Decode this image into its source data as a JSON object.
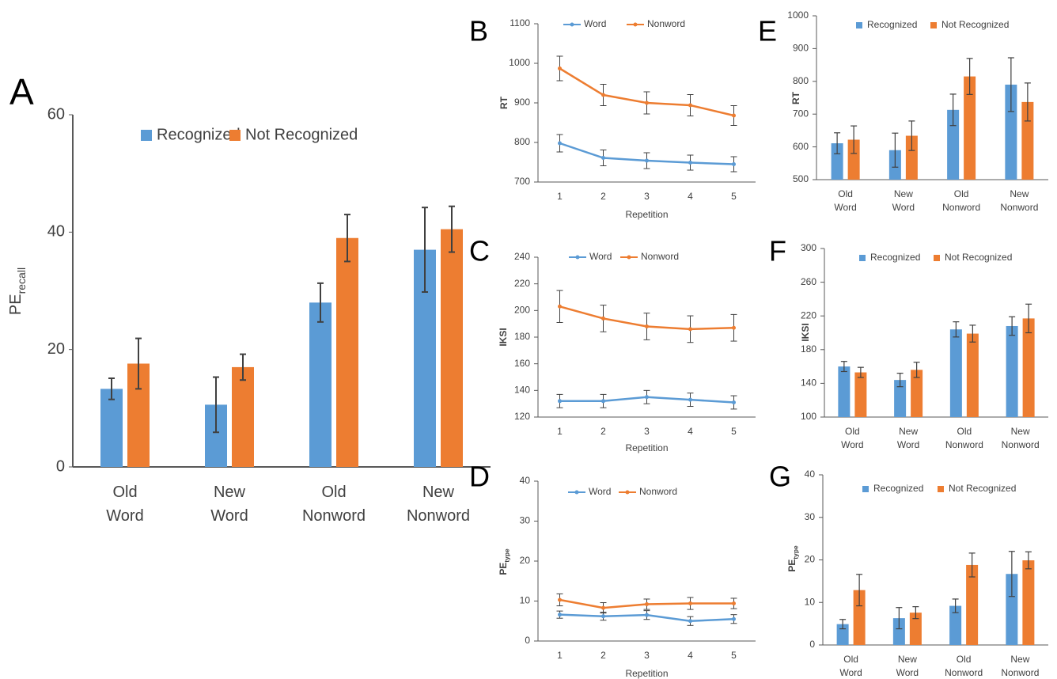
{
  "colors": {
    "blue": "#5b9bd5",
    "orange": "#ed7d31",
    "axis": "#595959",
    "err": "#404040",
    "text": "#404040"
  },
  "chart_data": [
    {
      "panel": "A",
      "type": "bar",
      "categories": [
        "Old Word",
        "New Word",
        "Old Nonword",
        "New Nonword"
      ],
      "category_lines": [
        [
          "Old",
          "Word"
        ],
        [
          "New",
          "Word"
        ],
        [
          "Old",
          "Nonword"
        ],
        [
          "New",
          "Nonword"
        ]
      ],
      "ylabel": "PE",
      "ylabel_sub": "recall",
      "ylim": [
        0,
        60
      ],
      "yticks": [
        0,
        20,
        40,
        60
      ],
      "grid": false,
      "legend": "top",
      "series": [
        {
          "name": "Recognized",
          "color": "blue",
          "values": [
            13.3,
            10.6,
            28.0,
            37.0
          ],
          "errors": [
            1.8,
            4.7,
            3.3,
            7.2
          ]
        },
        {
          "name": "Not Recognized",
          "color": "orange",
          "values": [
            17.6,
            17.0,
            39.0,
            40.5
          ],
          "errors": [
            4.3,
            2.2,
            4.0,
            3.9
          ]
        }
      ]
    },
    {
      "panel": "B",
      "type": "line",
      "x": [
        1,
        2,
        3,
        4,
        5
      ],
      "xlabel": "Repetition",
      "ylabel": "RT",
      "ylim": [
        700,
        1100
      ],
      "yticks": [
        700,
        800,
        900,
        1000,
        1100
      ],
      "grid": false,
      "legend": "top",
      "series": [
        {
          "name": "Word",
          "color": "blue",
          "values": [
            798,
            761,
            754,
            749,
            745
          ],
          "errors": [
            22,
            20,
            20,
            19,
            19
          ]
        },
        {
          "name": "Nonword",
          "color": "orange",
          "values": [
            987,
            920,
            900,
            894,
            868
          ],
          "errors": [
            31,
            27,
            28,
            27,
            25
          ]
        }
      ]
    },
    {
      "panel": "C",
      "type": "line",
      "x": [
        1,
        2,
        3,
        4,
        5
      ],
      "xlabel": "Repetition",
      "ylabel": "IKSI",
      "ylim": [
        120,
        240
      ],
      "yticks": [
        120,
        140,
        160,
        180,
        200,
        220,
        240
      ],
      "grid": false,
      "legend": "top",
      "series": [
        {
          "name": "Word",
          "color": "blue",
          "values": [
            132,
            132,
            135,
            133,
            131
          ],
          "errors": [
            5,
            5,
            5,
            5,
            5
          ]
        },
        {
          "name": "Nonword",
          "color": "orange",
          "values": [
            203,
            194,
            188,
            186,
            187
          ],
          "errors": [
            12,
            10,
            10,
            10,
            10
          ]
        }
      ]
    },
    {
      "panel": "D",
      "type": "line",
      "x": [
        1,
        2,
        3,
        4,
        5
      ],
      "xlabel": "Repetition",
      "ylabel": "PE",
      "ylabel_sub": "type",
      "ylim": [
        0,
        40
      ],
      "yticks": [
        0,
        10,
        20,
        30,
        40
      ],
      "grid": false,
      "legend": "top",
      "series": [
        {
          "name": "Word",
          "color": "blue",
          "values": [
            6.6,
            6.2,
            6.5,
            5.0,
            5.5
          ],
          "errors": [
            0.9,
            1.0,
            1.1,
            1.1,
            1.1
          ]
        },
        {
          "name": "Nonword",
          "color": "orange",
          "values": [
            10.3,
            8.3,
            9.2,
            9.4,
            9.4
          ],
          "errors": [
            1.5,
            1.3,
            1.3,
            1.5,
            1.3
          ]
        }
      ]
    },
    {
      "panel": "E",
      "type": "bar",
      "categories": [
        "Old Word",
        "New Word",
        "Old Nonword",
        "New Nonword"
      ],
      "category_lines": [
        [
          "Old",
          "Word"
        ],
        [
          "New",
          "Word"
        ],
        [
          "Old",
          "Nonword"
        ],
        [
          "New",
          "Nonword"
        ]
      ],
      "ylabel": "RT",
      "ylim": [
        500,
        1000
      ],
      "yticks": [
        500,
        600,
        700,
        800,
        900,
        1000
      ],
      "grid": false,
      "legend": "top",
      "series": [
        {
          "name": "Recognized",
          "color": "blue",
          "values": [
            611,
            590,
            713,
            790
          ],
          "errors": [
            32,
            52,
            48,
            82
          ]
        },
        {
          "name": "Not Recognized",
          "color": "orange",
          "values": [
            622,
            634,
            815,
            737
          ],
          "errors": [
            42,
            45,
            55,
            58
          ]
        }
      ]
    },
    {
      "panel": "F",
      "type": "bar",
      "categories": [
        "Old Word",
        "New Word",
        "Old Nonword",
        "New Nonword"
      ],
      "category_lines": [
        [
          "Old",
          "Word"
        ],
        [
          "New",
          "Word"
        ],
        [
          "Old",
          "Nonword"
        ],
        [
          "New",
          "Nonword"
        ]
      ],
      "ylabel": "IKSI",
      "ylim": [
        100,
        300
      ],
      "yticks": [
        100,
        140,
        180,
        220,
        260,
        300
      ],
      "grid": false,
      "legend": "top",
      "series": [
        {
          "name": "Recognized",
          "color": "blue",
          "values": [
            160,
            144,
            204,
            208
          ],
          "errors": [
            6,
            8,
            9,
            11
          ]
        },
        {
          "name": "Not Recognized",
          "color": "orange",
          "values": [
            153,
            156,
            199,
            217
          ],
          "errors": [
            6,
            9,
            10,
            17
          ]
        }
      ]
    },
    {
      "panel": "G",
      "type": "bar",
      "categories": [
        "Old Word",
        "New Word",
        "Old Nonword",
        "New Nonword"
      ],
      "category_lines": [
        [
          "Old",
          "Word"
        ],
        [
          "New",
          "Word"
        ],
        [
          "Old",
          "Nonword"
        ],
        [
          "New",
          "Nonword"
        ]
      ],
      "ylabel": "PE",
      "ylabel_sub": "type",
      "ylim": [
        0,
        40
      ],
      "yticks": [
        0,
        10,
        20,
        30,
        40
      ],
      "grid": false,
      "legend": "top",
      "series": [
        {
          "name": "Recognized",
          "color": "blue",
          "values": [
            4.9,
            6.3,
            9.2,
            16.7
          ],
          "errors": [
            1.1,
            2.5,
            1.6,
            5.3
          ]
        },
        {
          "name": "Not Recognized",
          "color": "orange",
          "values": [
            12.9,
            7.6,
            18.8,
            19.9
          ],
          "errors": [
            3.7,
            1.4,
            2.8,
            2.0
          ]
        }
      ]
    }
  ]
}
